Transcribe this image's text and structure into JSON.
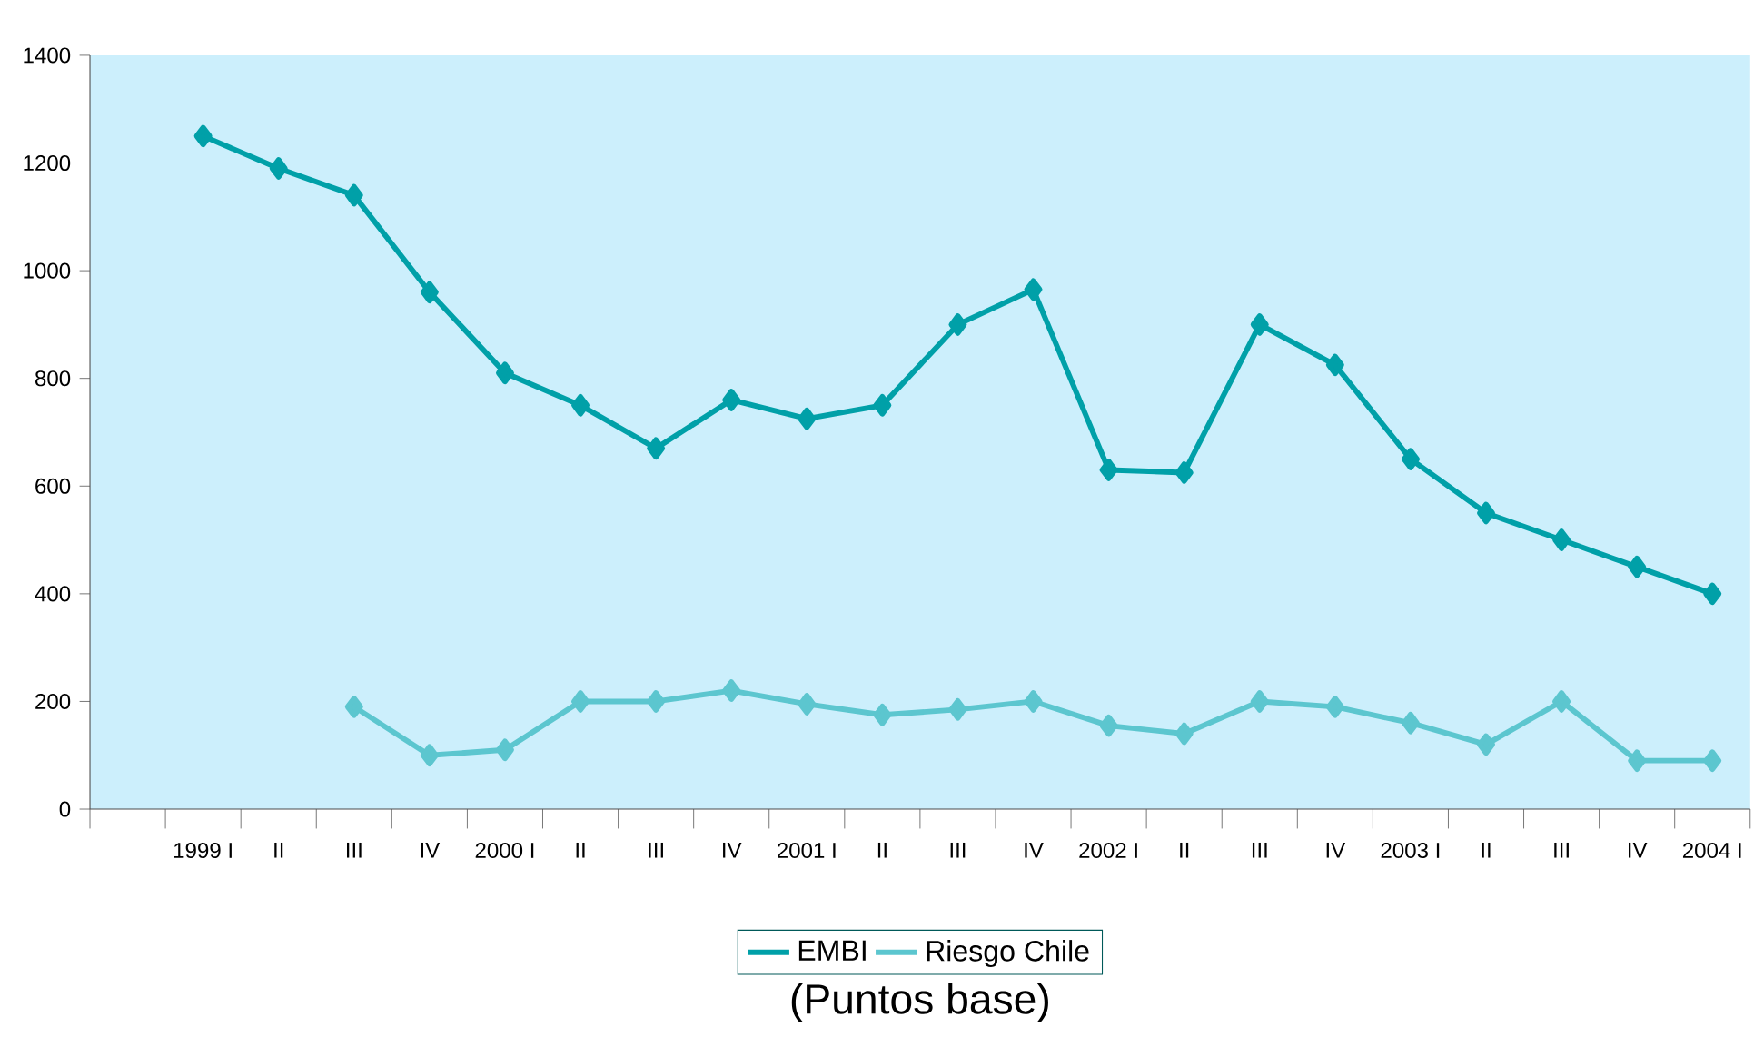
{
  "chart_data": {
    "type": "line",
    "categories": [
      null,
      "1999 I",
      "II",
      "III",
      "IV",
      "2000 I",
      "II",
      "III",
      "IV",
      "2001 I",
      "II",
      "III",
      "IV",
      "2002 I",
      "II",
      "III",
      "IV",
      "2003 I",
      "II",
      "III",
      "IV",
      "2004 I"
    ],
    "series": [
      {
        "name": "EMBI",
        "color": "#00a0a8",
        "values": [
          null,
          1250,
          1190,
          1140,
          960,
          810,
          750,
          670,
          760,
          725,
          750,
          900,
          965,
          630,
          625,
          900,
          825,
          650,
          550,
          500,
          450,
          400
        ]
      },
      {
        "name": "Riesgo Chile",
        "color": "#5cc6cf",
        "values": [
          null,
          null,
          null,
          190,
          100,
          110,
          200,
          200,
          220,
          195,
          175,
          185,
          200,
          155,
          140,
          200,
          190,
          160,
          120,
          200,
          90,
          90
        ]
      }
    ],
    "ylim": [
      0,
      1400
    ],
    "yticks": [
      0,
      200,
      400,
      600,
      800,
      1000,
      1200,
      1400
    ],
    "grid": false,
    "legend": "bottom",
    "marker": "diamond",
    "line_style": "solid",
    "annotations": [
      "(Puntos base)"
    ]
  }
}
